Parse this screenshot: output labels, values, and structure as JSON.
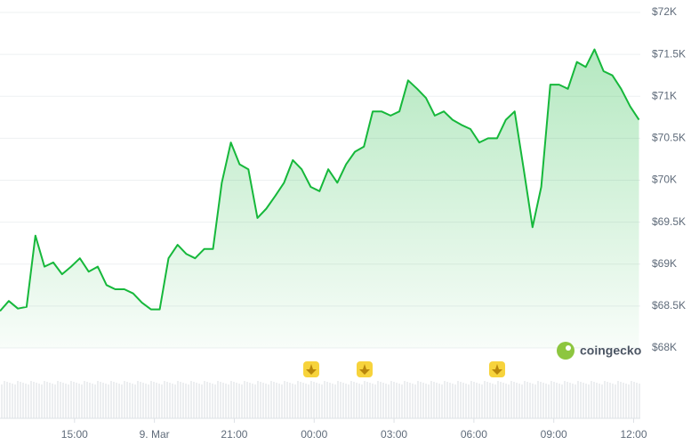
{
  "chart_data": {
    "type": "area",
    "watermark": "coingecko",
    "color": "#16b83b",
    "x": [
      12.2,
      12.53,
      12.87,
      13.2,
      13.53,
      13.87,
      14.2,
      14.53,
      14.87,
      15.2,
      15.53,
      15.87,
      16.2,
      16.53,
      16.87,
      17.2,
      17.53,
      17.87,
      18.2,
      18.53,
      18.87,
      19.2,
      19.53,
      19.87,
      20.2,
      20.53,
      20.87,
      21.2,
      21.53,
      21.87,
      22.2,
      22.53,
      22.87,
      23.2,
      23.53,
      23.87,
      24.2,
      24.53,
      24.87,
      25.2,
      25.53,
      25.87,
      26.2,
      26.53,
      26.87,
      27.2,
      27.53,
      27.87,
      28.2,
      28.53,
      28.87,
      29.2,
      29.53,
      29.87,
      30.2,
      30.53,
      30.87,
      31.2,
      31.53,
      31.87,
      32.2,
      32.53,
      32.87,
      33.2,
      33.53,
      33.87,
      34.2,
      34.53,
      34.87,
      35.2,
      35.53,
      35.87,
      36.2
    ],
    "values": [
      68440,
      68560,
      68470,
      68490,
      69340,
      68970,
      69020,
      68880,
      68970,
      69070,
      68910,
      68970,
      68750,
      68700,
      68700,
      68650,
      68540,
      68460,
      68460,
      69070,
      69230,
      69120,
      69070,
      69180,
      69180,
      69970,
      70450,
      70190,
      70130,
      69550,
      69660,
      69810,
      69970,
      70240,
      70130,
      69920,
      69870,
      70130,
      69970,
      70190,
      70340,
      70400,
      70820,
      70820,
      70770,
      70820,
      71190,
      71090,
      70980,
      70770,
      70820,
      70720,
      70660,
      70610,
      70450,
      70500,
      70500,
      70720,
      70820,
      70130,
      69440,
      69920,
      71140,
      71140,
      71090,
      71410,
      71350,
      71560,
      71300,
      71250,
      71090,
      70880,
      70720
    ],
    "xlim": [
      12.2,
      36.25
    ],
    "xticks": [
      {
        "value": 15,
        "label": "15:00"
      },
      {
        "value": 18,
        "label": "9. Mar"
      },
      {
        "value": 21,
        "label": "21:00"
      },
      {
        "value": 24,
        "label": "00:00"
      },
      {
        "value": 27,
        "label": "03:00"
      },
      {
        "value": 30,
        "label": "06:00"
      },
      {
        "value": 33,
        "label": "09:00"
      },
      {
        "value": 36,
        "label": "12:00"
      }
    ],
    "ylim": [
      68000,
      72000
    ],
    "yticks": [
      {
        "value": 68000,
        "label": "$68K"
      },
      {
        "value": 68500,
        "label": "$68.5K"
      },
      {
        "value": 69000,
        "label": "$69K"
      },
      {
        "value": 69500,
        "label": "$69.5K"
      },
      {
        "value": 70000,
        "label": "$70K"
      },
      {
        "value": 70500,
        "label": "$70.5K"
      },
      {
        "value": 71000,
        "label": "$71K"
      },
      {
        "value": 71500,
        "label": "$71.5K"
      },
      {
        "value": 72000,
        "label": "$72K"
      }
    ],
    "grid": true
  }
}
